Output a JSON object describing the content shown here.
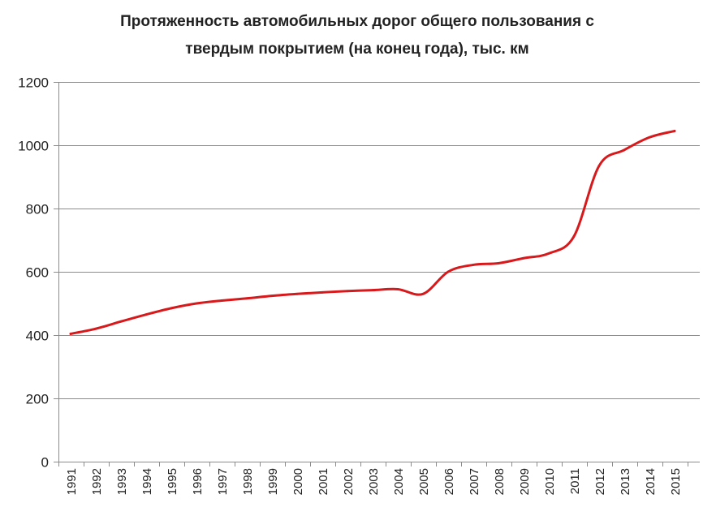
{
  "chart_data": {
    "type": "line",
    "title": "Протяженность автомобильных  дорог общего пользования с\nтвердым покрытием (на конец года), тыс. км",
    "xlabel": "",
    "ylabel": "",
    "categories": [
      "1991",
      "1992",
      "1993",
      "1994",
      "1995",
      "1996",
      "1997",
      "1998",
      "1999",
      "2000",
      "2001",
      "2002",
      "2003",
      "2004",
      "2005",
      "2006",
      "2007",
      "2008",
      "2009",
      "2010",
      "2011",
      "2012",
      "2013",
      "2014",
      "2015"
    ],
    "series": [
      {
        "values": [
          404,
          420,
          443,
          465,
          485,
          500,
          509,
          516,
          524,
          530,
          535,
          539,
          542,
          545,
          530,
          600,
          622,
          627,
          643,
          658,
          712,
          935,
          985,
          1025,
          1045
        ]
      }
    ],
    "ylim": [
      0,
      1200
    ],
    "yticks": [
      0,
      200,
      400,
      600,
      800,
      1000,
      1200
    ],
    "grid": true,
    "legend": "none",
    "line_color": "#d7191c"
  }
}
